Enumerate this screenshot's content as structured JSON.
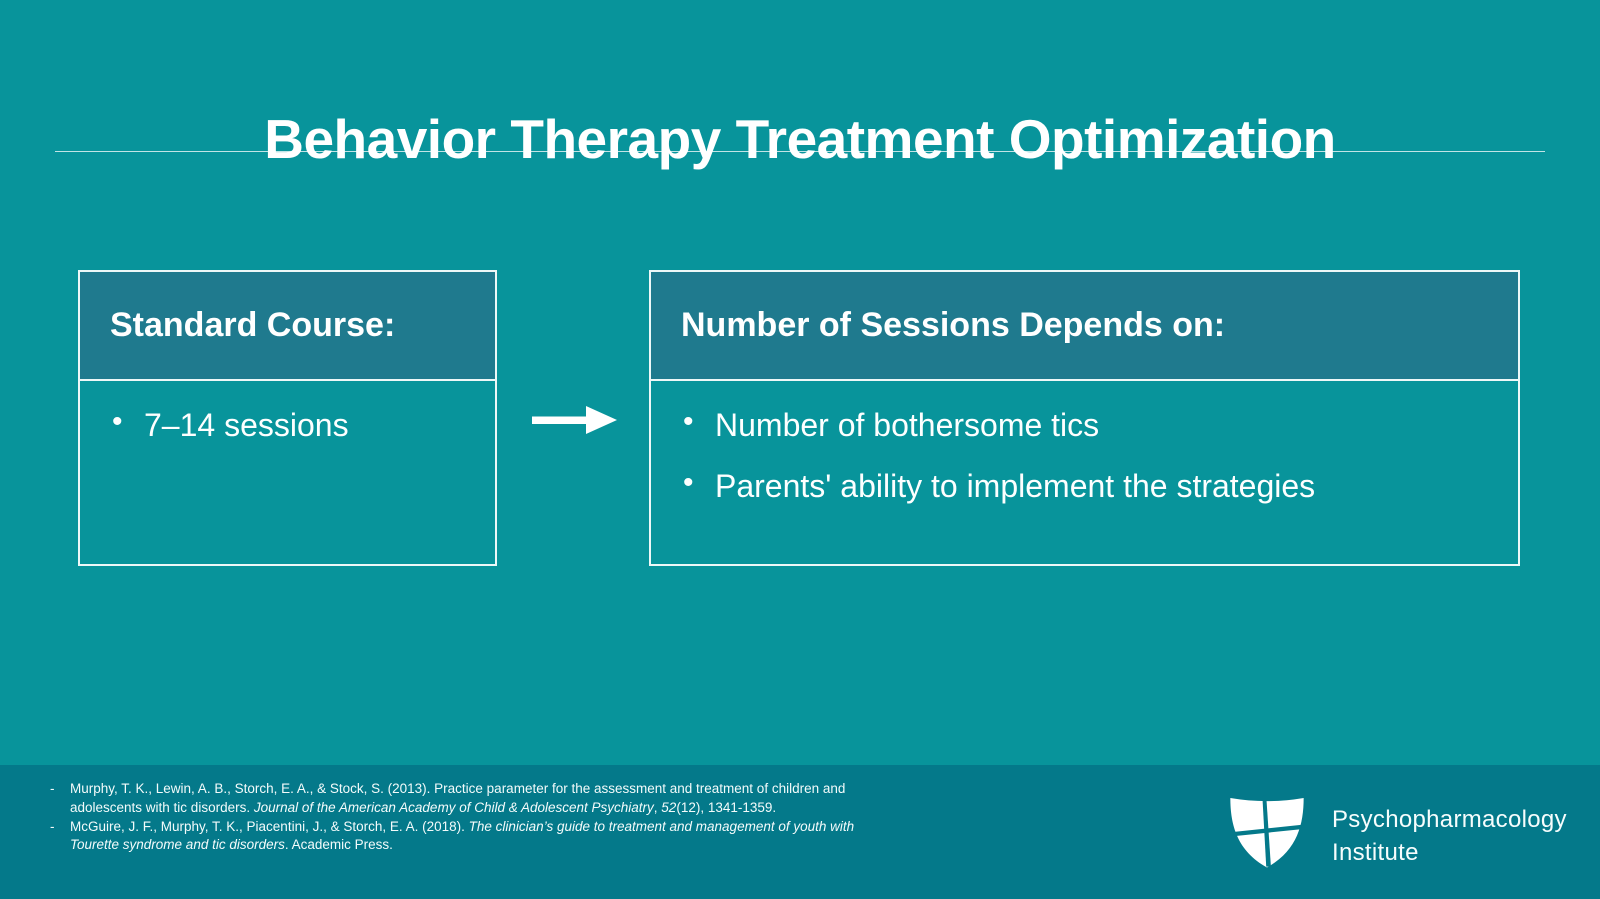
{
  "slide": {
    "title": "Behavior Therapy Treatment Optimization",
    "left_box": {
      "header": "Standard Course:",
      "bullets": [
        "7–14 sessions"
      ]
    },
    "right_box": {
      "header": "Number of Sessions Depends on:",
      "bullets": [
        "Number of bothersome tics",
        "Parents' ability to implement the strategies"
      ]
    },
    "arrow_icon": "right-arrow-icon"
  },
  "footer": {
    "references": [
      {
        "segments": [
          {
            "text": "Murphy, T. K., Lewin, A. B., Storch, E. A., & Stock, S. (2013). Practice parameter for the assessment and treatment of children and adolescents with tic disorders. ",
            "italic": false
          },
          {
            "text": "Journal of the American Academy of Child & Adolescent Psychiatry",
            "italic": true
          },
          {
            "text": ", ",
            "italic": false
          },
          {
            "text": "52",
            "italic": true
          },
          {
            "text": "(12), 1341-1359.",
            "italic": false
          }
        ]
      },
      {
        "segments": [
          {
            "text": "McGuire, J. F., Murphy, T. K., Piacentini, J., & Storch, E. A. (2018). ",
            "italic": false
          },
          {
            "text": "The clinician’s guide to treatment and management of youth with Tourette syndrome and tic disorders",
            "italic": true
          },
          {
            "text": ". Academic Press.",
            "italic": false
          }
        ]
      }
    ],
    "brand": {
      "logo": "shield-cross-icon",
      "line1": "Psychopharmacology",
      "line2": "Institute"
    }
  },
  "colors": {
    "background": "#08949B",
    "box_header": "#1F7A8E",
    "footer_band": "#04798A",
    "text": "#FFFFFF",
    "border": "#EDF8F8"
  }
}
